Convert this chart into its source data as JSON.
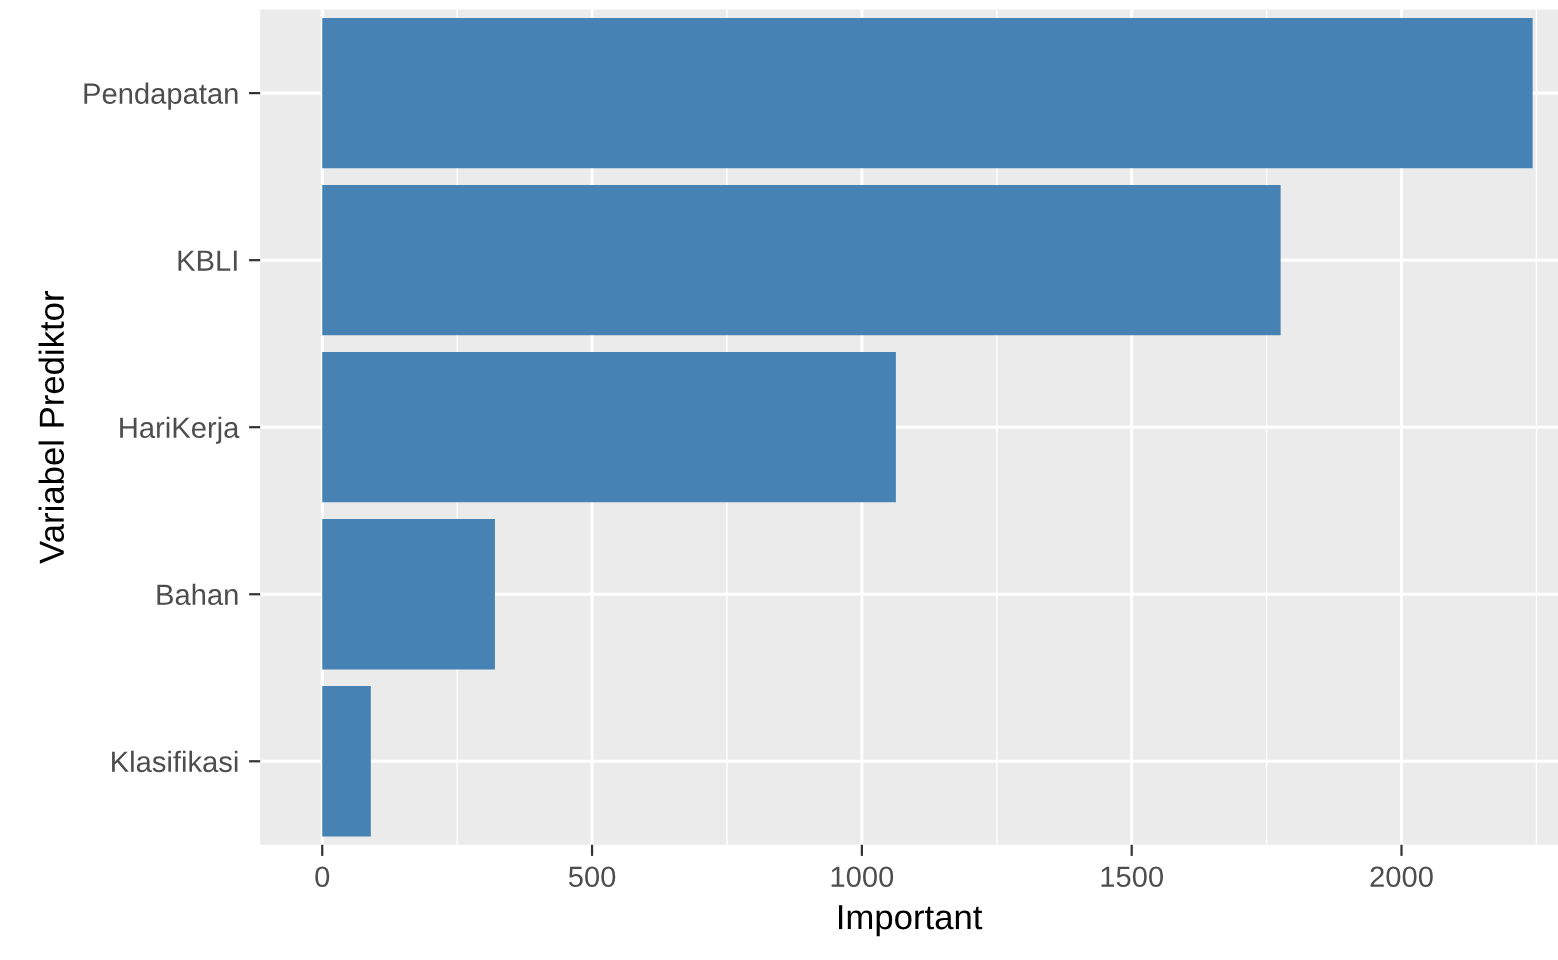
{
  "chart_data": {
    "type": "bar",
    "orientation": "horizontal",
    "xlabel": "Important",
    "ylabel": "Variabel Prediktor",
    "categories": [
      "Pendapatan",
      "KBLI",
      "HariKerja",
      "Bahan",
      "Klasifikasi"
    ],
    "values": [
      2243,
      1776,
      1063,
      320,
      90
    ],
    "color": "#4682b4",
    "xlim": [
      -115,
      2290
    ],
    "xticks": [
      0,
      500,
      1000,
      1500,
      2000
    ],
    "grid": true
  }
}
